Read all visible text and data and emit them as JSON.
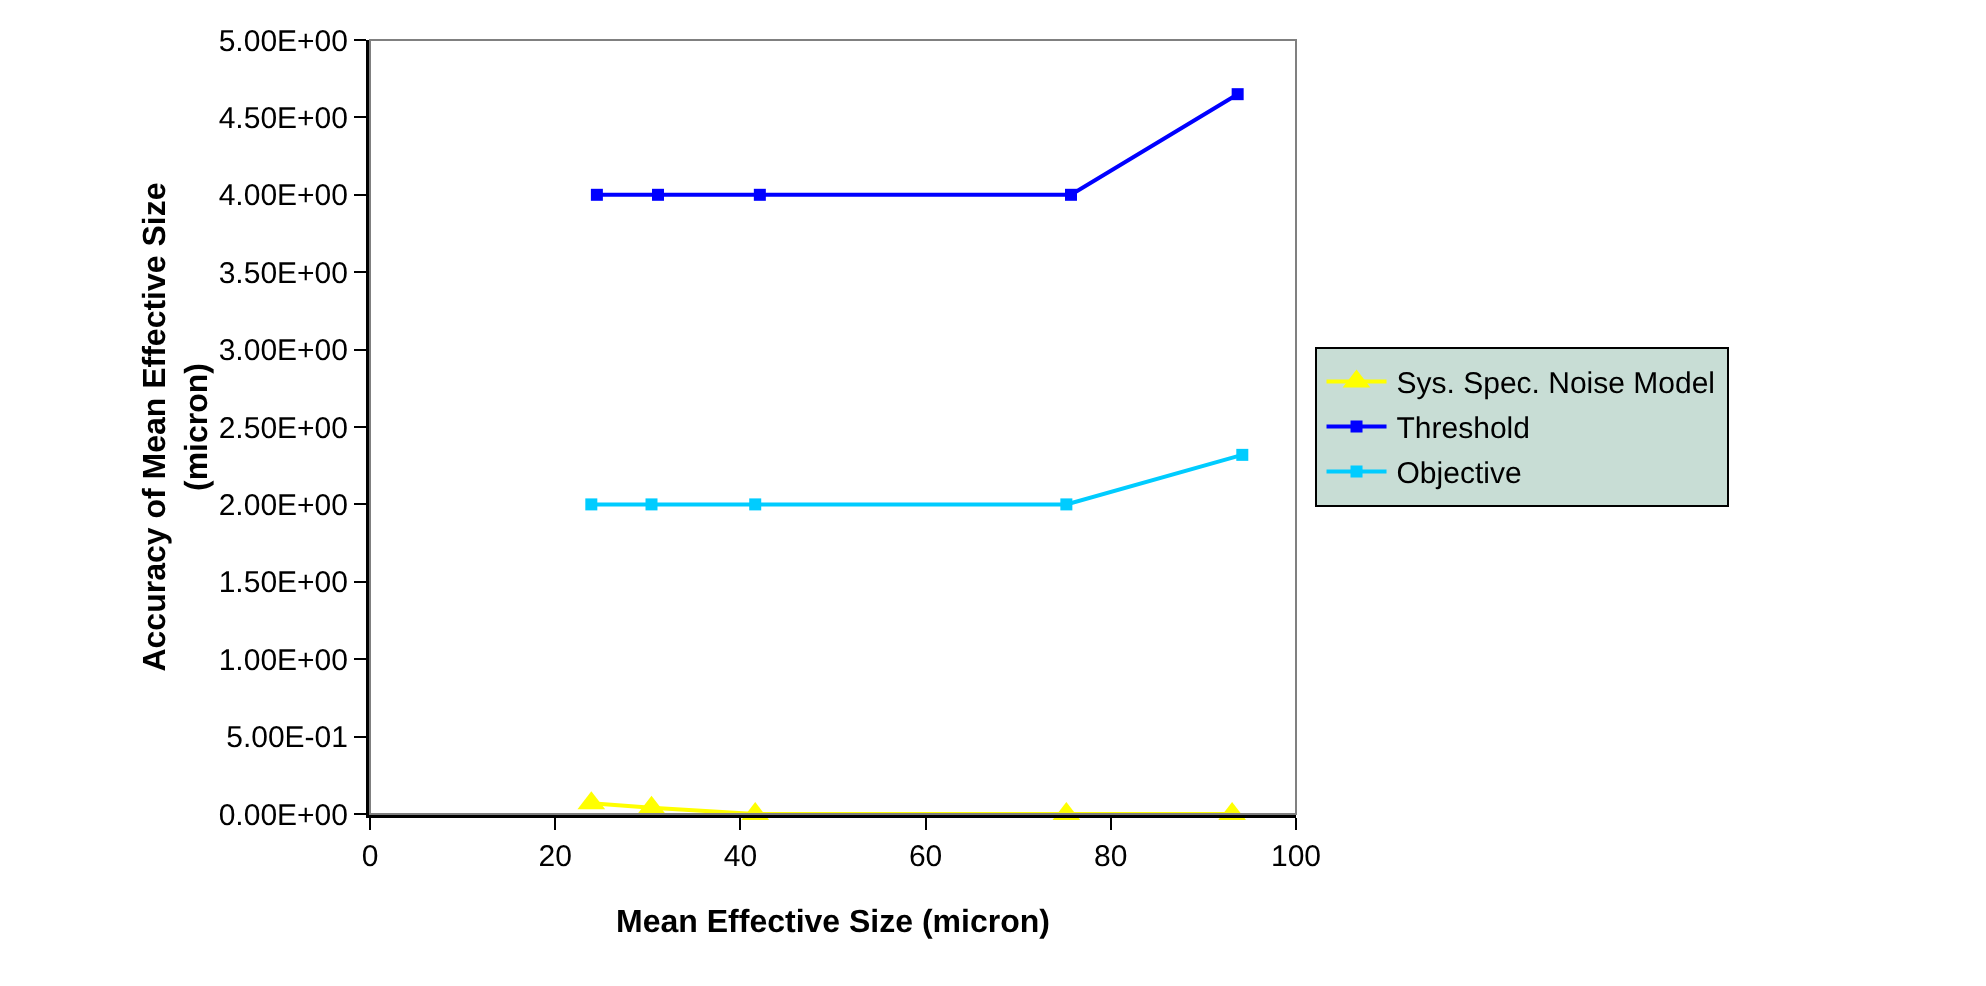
{
  "chart_data": {
    "type": "line",
    "xlabel": "Mean Effective Size (micron)",
    "ylabel": "Accuracy of Mean Effective Size\n(micron)",
    "xlim": [
      0,
      100
    ],
    "xticks": [
      0,
      20,
      40,
      60,
      80,
      100
    ],
    "ylim": [
      0,
      5
    ],
    "yticks": [
      {
        "value": 0,
        "label": "0.00E+00"
      },
      {
        "value": 0.5,
        "label": "5.00E-01"
      },
      {
        "value": 1,
        "label": "1.00E+00"
      },
      {
        "value": 1.5,
        "label": "1.50E+00"
      },
      {
        "value": 2,
        "label": "2.00E+00"
      },
      {
        "value": 2.5,
        "label": "2.50E+00"
      },
      {
        "value": 3,
        "label": "3.00E+00"
      },
      {
        "value": 3.5,
        "label": "3.50E+00"
      },
      {
        "value": 4,
        "label": "4.00E+00"
      },
      {
        "value": 4.5,
        "label": "4.50E+00"
      },
      {
        "value": 5,
        "label": "5.00E+00"
      }
    ],
    "grid": false,
    "legend": "right",
    "line_style": "solid",
    "series": [
      {
        "name": "Sys. Spec. Noise Model",
        "color": "#ffff00",
        "marker": "triangle",
        "x": [
          23.9,
          30.4,
          41.6,
          75.2,
          93.1
        ],
        "values": [
          0.07,
          0.04,
          0,
          0,
          0
        ]
      },
      {
        "name": "Threshold",
        "color": "#0000ff",
        "marker": "square",
        "x": [
          24.5,
          31.1,
          42.1,
          75.7,
          93.7
        ],
        "values": [
          4,
          4,
          4,
          4,
          4.65
        ]
      },
      {
        "name": "Objective",
        "color": "#00ccff",
        "marker": "square",
        "x": [
          23.9,
          30.4,
          41.6,
          75.2,
          94.2
        ],
        "values": [
          2,
          2,
          2,
          2,
          2.32
        ]
      }
    ]
  }
}
